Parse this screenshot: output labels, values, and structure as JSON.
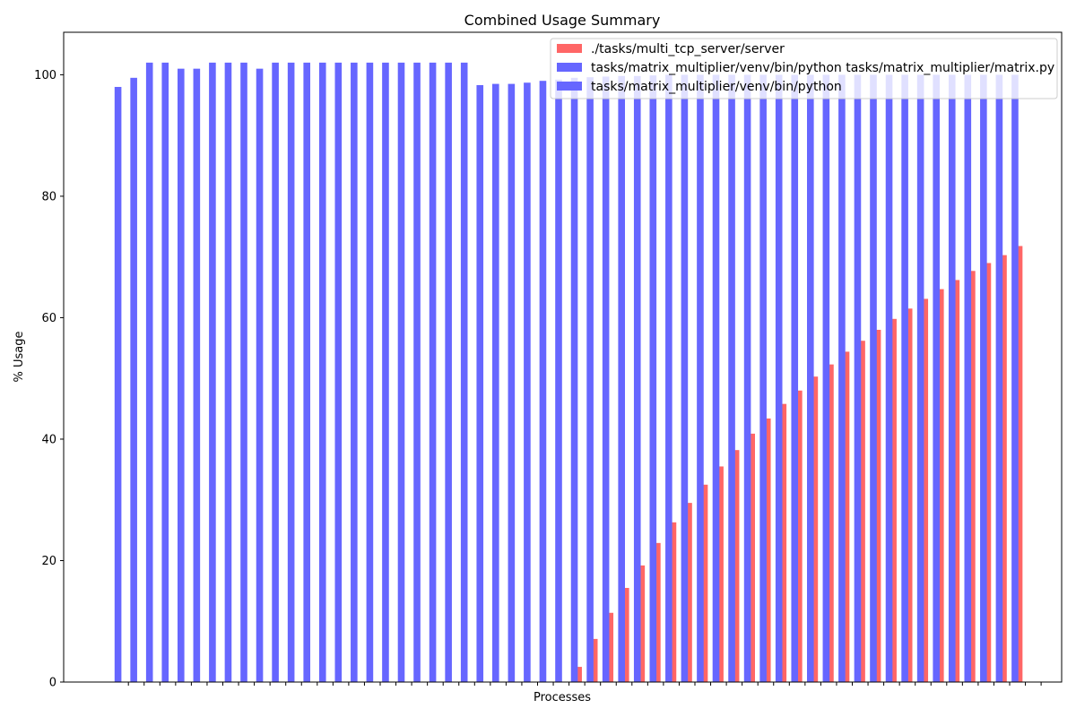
{
  "chart_data": {
    "type": "bar",
    "title": "Combined Usage Summary",
    "xlabel": "Processes",
    "ylabel": "% Usage",
    "ylim": [
      0,
      107
    ],
    "yticks": [
      0,
      20,
      40,
      60,
      80,
      100
    ],
    "grid": false,
    "legend_position": "top-right",
    "series": [
      {
        "name": "./tasks/multi_tcp_server/server",
        "color": "#ff6666",
        "x_index": [
          29,
          30,
          31,
          32,
          33,
          34,
          35,
          36,
          37,
          38,
          39,
          40,
          41,
          42,
          43,
          44,
          45,
          46,
          47,
          48,
          49,
          50,
          51,
          52,
          53,
          54,
          55,
          56,
          57
        ],
        "values": [
          2.5,
          7.1,
          11.4,
          15.5,
          19.2,
          22.9,
          26.3,
          29.5,
          32.5,
          35.5,
          38.2,
          40.9,
          43.4,
          45.8,
          48.0,
          50.3,
          52.3,
          54.4,
          56.2,
          58.0,
          59.8,
          61.5,
          63.1,
          64.7,
          66.2,
          67.7,
          69.0,
          70.3,
          71.8
        ]
      },
      {
        "name": "tasks/matrix_multiplier/venv/bin/python tasks/matrix_multiplier/matrix.py",
        "color": "#6666ff",
        "x_index": [
          0,
          1,
          2,
          3,
          4,
          5,
          6,
          7,
          8,
          9,
          10,
          11,
          12,
          13,
          14,
          15,
          16,
          17,
          18,
          19,
          20,
          21,
          22
        ],
        "values": [
          98.0,
          99.5,
          102.0,
          102.0,
          101.0,
          101.0,
          102.0,
          102.0,
          102.0,
          101.0,
          102.0,
          102.0,
          102.0,
          102.0,
          102.0,
          102.0,
          102.0,
          102.0,
          102.0,
          102.0,
          102.0,
          102.0,
          102.0
        ]
      },
      {
        "name": "tasks/matrix_multiplier/venv/bin/python",
        "color": "#6666ff",
        "x_index": [
          23,
          24,
          25,
          26,
          27,
          28,
          29,
          30,
          31,
          32,
          33,
          34,
          35,
          36,
          37,
          38,
          39,
          40,
          41,
          42,
          43,
          44,
          45,
          46,
          47,
          48,
          49,
          50,
          51,
          52,
          53,
          54,
          55,
          56,
          57
        ],
        "values": [
          98.3,
          98.5,
          98.5,
          98.7,
          99.0,
          99.2,
          99.5,
          99.6,
          99.7,
          99.8,
          99.8,
          99.9,
          100.0,
          100.0,
          100.0,
          100.0,
          100.0,
          100.0,
          100.0,
          100.0,
          100.0,
          100.0,
          100.0,
          100.0,
          100.0,
          100.0,
          100.0,
          100.0,
          100.0,
          100.0,
          100.0,
          100.0,
          100.0,
          100.0,
          100.0
        ]
      }
    ],
    "category_count": 58
  }
}
